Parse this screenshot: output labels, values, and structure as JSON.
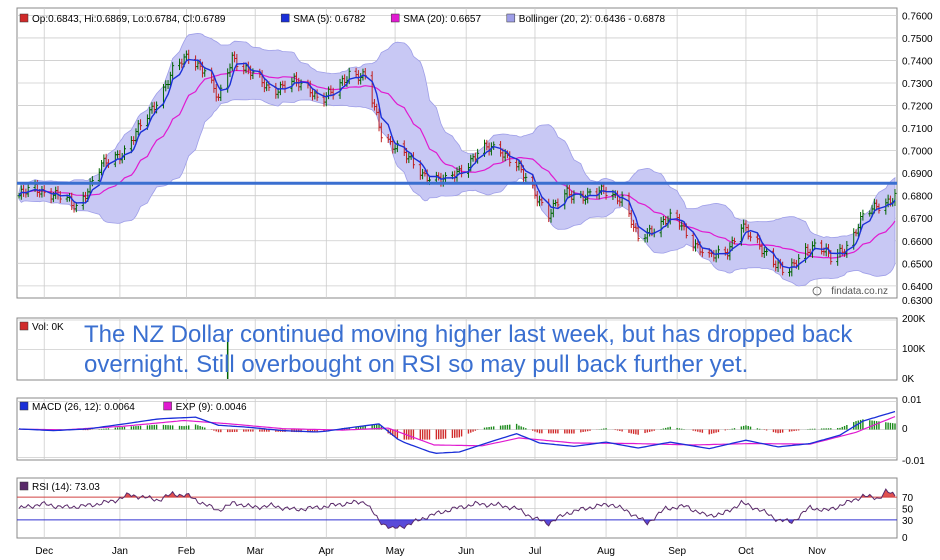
{
  "annotation": {
    "line1": "The NZ Dollar continued moving higher last week, but has dropped back",
    "line2": "overnight. Still overbought on RSI so may pull back further yet."
  },
  "watermark": "findata.co.nz",
  "colors": {
    "price": "#006400",
    "sma5": "#1a2fd8",
    "sma20": "#e01ad0",
    "bollinger_fill": "#c8c8f4",
    "bollinger_edge": "#9e9ee8",
    "resistance": "#3a6fd0",
    "macd": "#1a2fd8",
    "signal": "#e01ad0",
    "hist_pos": "#1a8a1a",
    "hist_neg": "#d02a2a",
    "rsi": "#5a2a6a",
    "rsi_over": "#e05050",
    "rsi_under": "#5a4ad8",
    "rsi_line70": "#d04040",
    "rsi_line30": "#3030d0",
    "grid": "#cccccc",
    "volume_bar": "#006400"
  },
  "chart_data": [
    {
      "type": "line",
      "panel": "price",
      "legend": [
        {
          "label": "Op:0.6843, Hi:0.6869, Lo:0.6784, Cl:0.6789",
          "color": "#d02a2a"
        },
        {
          "label": "SMA (5): 0.6782",
          "color": "#1a2fd8"
        },
        {
          "label": "SMA (20): 0.6657",
          "color": "#e01ad0"
        },
        {
          "label": "Bollinger (20, 2): 0.6436 - 0.6878",
          "color": "#9e9ee8"
        }
      ],
      "ylim": [
        0.6355,
        0.7615
      ],
      "yticks": [
        "0.7600",
        "0.7500",
        "0.7400",
        "0.7300",
        "0.7200",
        "0.7100",
        "0.7000",
        "0.6900",
        "0.6800",
        "0.6700",
        "0.6600",
        "0.6500",
        "0.6400",
        "0.6300"
      ],
      "resistance": 0.6855,
      "close_keypoints": [
        [
          "2013-11-25",
          0.68
        ],
        [
          "2013-12-02",
          0.683
        ],
        [
          "2013-12-10",
          0.681
        ],
        [
          "2013-12-20",
          0.675
        ],
        [
          "2013-12-31",
          0.693
        ],
        [
          "2014-01-10",
          0.7
        ],
        [
          "2014-01-20",
          0.715
        ],
        [
          "2014-01-31",
          0.735
        ],
        [
          "2014-02-07",
          0.742
        ],
        [
          "2014-02-14",
          0.736
        ],
        [
          "2014-02-20",
          0.722
        ],
        [
          "2014-02-26",
          0.742
        ],
        [
          "2014-03-05",
          0.735
        ],
        [
          "2014-03-15",
          0.727
        ],
        [
          "2014-03-25",
          0.73
        ],
        [
          "2014-04-01",
          0.728
        ],
        [
          "2014-04-05",
          0.722
        ],
        [
          "2014-04-12",
          0.726
        ],
        [
          "2014-04-18",
          0.735
        ],
        [
          "2014-04-25",
          0.732
        ],
        [
          "2014-05-02",
          0.708
        ],
        [
          "2014-05-10",
          0.7
        ],
        [
          "2014-05-20",
          0.69
        ],
        [
          "2014-05-30",
          0.686
        ],
        [
          "2014-06-08",
          0.694
        ],
        [
          "2014-06-15",
          0.7
        ],
        [
          "2014-06-22",
          0.702
        ],
        [
          "2014-06-30",
          0.693
        ],
        [
          "2014-07-07",
          0.683
        ],
        [
          "2014-07-14",
          0.672
        ],
        [
          "2014-07-22",
          0.681
        ],
        [
          "2014-07-31",
          0.68
        ],
        [
          "2014-08-08",
          0.682
        ],
        [
          "2014-08-15",
          0.679
        ],
        [
          "2014-08-22",
          0.66
        ],
        [
          "2014-08-31",
          0.668
        ],
        [
          "2014-09-07",
          0.67
        ],
        [
          "2014-09-15",
          0.66
        ],
        [
          "2014-09-22",
          0.652
        ],
        [
          "2014-09-30",
          0.656
        ],
        [
          "2014-10-06",
          0.667
        ],
        [
          "2014-10-10",
          0.661
        ],
        [
          "2014-10-18",
          0.654
        ],
        [
          "2014-10-26",
          0.644
        ],
        [
          "2014-11-02",
          0.656
        ],
        [
          "2014-11-08",
          0.658
        ],
        [
          "2014-11-14",
          0.652
        ],
        [
          "2014-11-22",
          0.659
        ],
        [
          "2014-11-28",
          0.67
        ],
        [
          "2014-12-04",
          0.676
        ],
        [
          "2014-12-12",
          0.6789
        ]
      ]
    },
    {
      "type": "bar",
      "panel": "volume",
      "legend": [
        {
          "label": "Vol: 0K",
          "color": "#d02a2a"
        }
      ],
      "ylim": [
        0,
        200
      ],
      "yticks": [
        "200K",
        "100K",
        "0K"
      ],
      "spike": {
        "x": "2014-02-24",
        "value": 140
      }
    },
    {
      "type": "line",
      "panel": "macd",
      "legend": [
        {
          "label": "MACD (26, 12): 0.0064",
          "color": "#1a2fd8"
        },
        {
          "label": "EXP (9): 0.0046",
          "color": "#e01ad0"
        }
      ],
      "ylim": [
        -0.0105,
        0.0105
      ],
      "yticks": [
        "0.01",
        "0",
        "-0.01"
      ],
      "macd_keypoints": [
        [
          "2013-11-25",
          0.0002
        ],
        [
          "2013-12-10",
          -0.0004
        ],
        [
          "2013-12-25",
          0.0002
        ],
        [
          "2014-01-10",
          0.002
        ],
        [
          "2014-01-25",
          0.0038
        ],
        [
          "2014-02-10",
          0.0044
        ],
        [
          "2014-02-20",
          0.0015
        ],
        [
          "2014-03-05",
          0.0008
        ],
        [
          "2014-03-20",
          -0.0004
        ],
        [
          "2014-04-05",
          -0.0009
        ],
        [
          "2014-04-20",
          0.0008
        ],
        [
          "2014-05-01",
          0.002
        ],
        [
          "2014-05-10",
          -0.004
        ],
        [
          "2014-05-25",
          -0.0085
        ],
        [
          "2014-06-05",
          -0.008
        ],
        [
          "2014-06-20",
          -0.004
        ],
        [
          "2014-06-30",
          -0.0015
        ],
        [
          "2014-07-10",
          -0.0048
        ],
        [
          "2014-07-25",
          -0.006
        ],
        [
          "2014-08-08",
          -0.0045
        ],
        [
          "2014-08-22",
          -0.0066
        ],
        [
          "2014-09-05",
          -0.0045
        ],
        [
          "2014-09-22",
          -0.0068
        ],
        [
          "2014-10-08",
          -0.0038
        ],
        [
          "2014-10-22",
          -0.0062
        ],
        [
          "2014-11-05",
          -0.005
        ],
        [
          "2014-11-18",
          -0.002
        ],
        [
          "2014-11-28",
          0.003
        ],
        [
          "2014-12-12",
          0.0064
        ]
      ],
      "signal_keypoints": [
        [
          "2013-11-25",
          0.0001
        ],
        [
          "2013-12-15",
          -0.0001
        ],
        [
          "2014-01-10",
          0.0012
        ],
        [
          "2014-02-05",
          0.0032
        ],
        [
          "2014-02-25",
          0.002
        ],
        [
          "2014-03-20",
          0.0003
        ],
        [
          "2014-04-15",
          -0.0002
        ],
        [
          "2014-05-05",
          0.0005
        ],
        [
          "2014-05-25",
          -0.0055
        ],
        [
          "2014-06-15",
          -0.0058
        ],
        [
          "2014-07-01",
          -0.003
        ],
        [
          "2014-07-25",
          -0.0048
        ],
        [
          "2014-08-20",
          -0.005
        ],
        [
          "2014-09-15",
          -0.0055
        ],
        [
          "2014-10-10",
          -0.005
        ],
        [
          "2014-11-05",
          -0.0052
        ],
        [
          "2014-11-25",
          -0.001
        ],
        [
          "2014-12-12",
          0.0046
        ]
      ]
    },
    {
      "type": "line",
      "panel": "rsi",
      "legend": [
        {
          "label": "RSI (14): 73.03",
          "color": "#5a2a6a"
        }
      ],
      "ylim": [
        0,
        100
      ],
      "yticks": [
        "70",
        "50",
        "30",
        "0"
      ],
      "levels": [
        70,
        30
      ],
      "rsi_keypoints": [
        [
          "2013-11-25",
          50
        ],
        [
          "2013-12-05",
          58
        ],
        [
          "2013-12-15",
          52
        ],
        [
          "2013-12-25",
          55
        ],
        [
          "2014-01-05",
          63
        ],
        [
          "2014-01-12",
          74
        ],
        [
          "2014-01-18",
          70
        ],
        [
          "2014-01-25",
          65
        ],
        [
          "2014-01-31",
          76
        ],
        [
          "2014-02-07",
          72
        ],
        [
          "2014-02-14",
          57
        ],
        [
          "2014-02-20",
          47
        ],
        [
          "2014-02-27",
          60
        ],
        [
          "2014-03-07",
          52
        ],
        [
          "2014-03-15",
          55
        ],
        [
          "2014-03-25",
          48
        ],
        [
          "2014-04-05",
          52
        ],
        [
          "2014-04-15",
          58
        ],
        [
          "2014-04-25",
          62
        ],
        [
          "2014-05-01",
          28
        ],
        [
          "2014-05-07",
          14
        ],
        [
          "2014-05-14",
          22
        ],
        [
          "2014-05-22",
          36
        ],
        [
          "2014-06-01",
          48
        ],
        [
          "2014-06-12",
          58
        ],
        [
          "2014-06-22",
          56
        ],
        [
          "2014-06-30",
          50
        ],
        [
          "2014-07-08",
          32
        ],
        [
          "2014-07-14",
          24
        ],
        [
          "2014-07-22",
          42
        ],
        [
          "2014-08-01",
          52
        ],
        [
          "2014-08-10",
          58
        ],
        [
          "2014-08-18",
          44
        ],
        [
          "2014-08-26",
          24
        ],
        [
          "2014-09-03",
          50
        ],
        [
          "2014-09-12",
          54
        ],
        [
          "2014-09-20",
          38
        ],
        [
          "2014-09-28",
          40
        ],
        [
          "2014-10-06",
          60
        ],
        [
          "2014-10-14",
          48
        ],
        [
          "2014-10-22",
          30
        ],
        [
          "2014-10-28",
          26
        ],
        [
          "2014-11-05",
          52
        ],
        [
          "2014-11-12",
          46
        ],
        [
          "2014-11-20",
          58
        ],
        [
          "2014-11-28",
          72
        ],
        [
          "2014-12-05",
          68
        ],
        [
          "2014-12-08",
          80
        ],
        [
          "2014-12-12",
          73.03
        ]
      ]
    }
  ],
  "x_axis": {
    "start": "2013-11-25",
    "end": "2014-12-12",
    "labels": [
      {
        "label": "Dec",
        "date": "2013-12-06"
      },
      {
        "label": "Jan",
        "date": "2014-01-08"
      },
      {
        "label": "Feb",
        "date": "2014-02-06"
      },
      {
        "label": "Mar",
        "date": "2014-03-08"
      },
      {
        "label": "Apr",
        "date": "2014-04-08"
      },
      {
        "label": "May",
        "date": "2014-05-08"
      },
      {
        "label": "Jun",
        "date": "2014-06-08"
      },
      {
        "label": "Jul",
        "date": "2014-07-08"
      },
      {
        "label": "Aug",
        "date": "2014-08-08"
      },
      {
        "label": "Sep",
        "date": "2014-09-08"
      },
      {
        "label": "Oct",
        "date": "2014-10-08"
      },
      {
        "label": "Nov",
        "date": "2014-11-08"
      }
    ]
  }
}
